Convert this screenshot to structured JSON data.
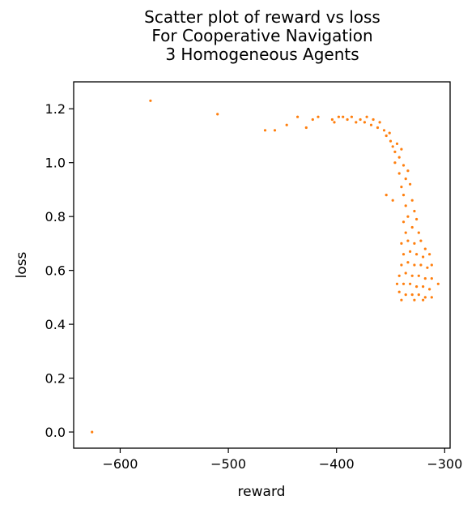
{
  "chart_data": {
    "type": "scatter",
    "title": [
      "Scatter plot of reward vs loss",
      "For Cooperative Navigation",
      "3 Homogeneous Agents"
    ],
    "xlabel": "reward",
    "ylabel": "loss",
    "xlim": [
      -643,
      -295
    ],
    "ylim": [
      -0.06,
      1.3
    ],
    "xticks": [
      -600,
      -500,
      -400,
      -300
    ],
    "xtick_labels": [
      "−600",
      "−500",
      "−400",
      "−300"
    ],
    "yticks": [
      0.0,
      0.2,
      0.4,
      0.6,
      0.8,
      1.0,
      1.2
    ],
    "ytick_labels": [
      "0.0",
      "0.2",
      "0.4",
      "0.6",
      "0.8",
      "1.0",
      "1.2"
    ],
    "grid": false,
    "marker_color": "#ff7f0e",
    "points": [
      {
        "x": -626,
        "y": 0.0
      },
      {
        "x": -572,
        "y": 1.23
      },
      {
        "x": -510,
        "y": 1.18
      },
      {
        "x": -466,
        "y": 1.12
      },
      {
        "x": -457,
        "y": 1.12
      },
      {
        "x": -446,
        "y": 1.14
      },
      {
        "x": -436,
        "y": 1.17
      },
      {
        "x": -428,
        "y": 1.13
      },
      {
        "x": -422,
        "y": 1.16
      },
      {
        "x": -417,
        "y": 1.17
      },
      {
        "x": -404,
        "y": 1.16
      },
      {
        "x": -402,
        "y": 1.15
      },
      {
        "x": -398,
        "y": 1.17
      },
      {
        "x": -394,
        "y": 1.17
      },
      {
        "x": -390,
        "y": 1.16
      },
      {
        "x": -386,
        "y": 1.17
      },
      {
        "x": -382,
        "y": 1.15
      },
      {
        "x": -378,
        "y": 1.16
      },
      {
        "x": -374,
        "y": 1.15
      },
      {
        "x": -372,
        "y": 1.17
      },
      {
        "x": -368,
        "y": 1.14
      },
      {
        "x": -366,
        "y": 1.16
      },
      {
        "x": -362,
        "y": 1.13
      },
      {
        "x": -360,
        "y": 1.15
      },
      {
        "x": -356,
        "y": 1.12
      },
      {
        "x": -354,
        "y": 1.1
      },
      {
        "x": -351,
        "y": 1.11
      },
      {
        "x": -350,
        "y": 1.08
      },
      {
        "x": -348,
        "y": 1.06
      },
      {
        "x": -346,
        "y": 1.04
      },
      {
        "x": -344,
        "y": 1.07
      },
      {
        "x": -342,
        "y": 1.02
      },
      {
        "x": -346,
        "y": 1.0
      },
      {
        "x": -340,
        "y": 1.05
      },
      {
        "x": -338,
        "y": 0.99
      },
      {
        "x": -342,
        "y": 0.96
      },
      {
        "x": -336,
        "y": 0.94
      },
      {
        "x": -340,
        "y": 0.91
      },
      {
        "x": -334,
        "y": 0.97
      },
      {
        "x": -338,
        "y": 0.88
      },
      {
        "x": -354,
        "y": 0.88
      },
      {
        "x": -348,
        "y": 0.86
      },
      {
        "x": -332,
        "y": 0.92
      },
      {
        "x": -336,
        "y": 0.84
      },
      {
        "x": -330,
        "y": 0.86
      },
      {
        "x": -334,
        "y": 0.8
      },
      {
        "x": -328,
        "y": 0.82
      },
      {
        "x": -338,
        "y": 0.78
      },
      {
        "x": -326,
        "y": 0.79
      },
      {
        "x": -336,
        "y": 0.74
      },
      {
        "x": -330,
        "y": 0.76
      },
      {
        "x": -324,
        "y": 0.74
      },
      {
        "x": -340,
        "y": 0.7
      },
      {
        "x": -334,
        "y": 0.71
      },
      {
        "x": -328,
        "y": 0.7
      },
      {
        "x": -322,
        "y": 0.71
      },
      {
        "x": -318,
        "y": 0.68
      },
      {
        "x": -338,
        "y": 0.66
      },
      {
        "x": -332,
        "y": 0.67
      },
      {
        "x": -326,
        "y": 0.66
      },
      {
        "x": -320,
        "y": 0.65
      },
      {
        "x": -314,
        "y": 0.66
      },
      {
        "x": -340,
        "y": 0.62
      },
      {
        "x": -334,
        "y": 0.63
      },
      {
        "x": -328,
        "y": 0.62
      },
      {
        "x": -322,
        "y": 0.62
      },
      {
        "x": -316,
        "y": 0.61
      },
      {
        "x": -312,
        "y": 0.62
      },
      {
        "x": -342,
        "y": 0.58
      },
      {
        "x": -336,
        "y": 0.59
      },
      {
        "x": -330,
        "y": 0.58
      },
      {
        "x": -324,
        "y": 0.58
      },
      {
        "x": -318,
        "y": 0.57
      },
      {
        "x": -312,
        "y": 0.57
      },
      {
        "x": -306,
        "y": 0.55
      },
      {
        "x": -344,
        "y": 0.55
      },
      {
        "x": -338,
        "y": 0.55
      },
      {
        "x": -332,
        "y": 0.55
      },
      {
        "x": -326,
        "y": 0.54
      },
      {
        "x": -320,
        "y": 0.54
      },
      {
        "x": -314,
        "y": 0.53
      },
      {
        "x": -342,
        "y": 0.52
      },
      {
        "x": -336,
        "y": 0.51
      },
      {
        "x": -330,
        "y": 0.51
      },
      {
        "x": -324,
        "y": 0.51
      },
      {
        "x": -318,
        "y": 0.5
      },
      {
        "x": -312,
        "y": 0.5
      },
      {
        "x": -340,
        "y": 0.49
      },
      {
        "x": -328,
        "y": 0.49
      },
      {
        "x": -320,
        "y": 0.49
      }
    ]
  }
}
